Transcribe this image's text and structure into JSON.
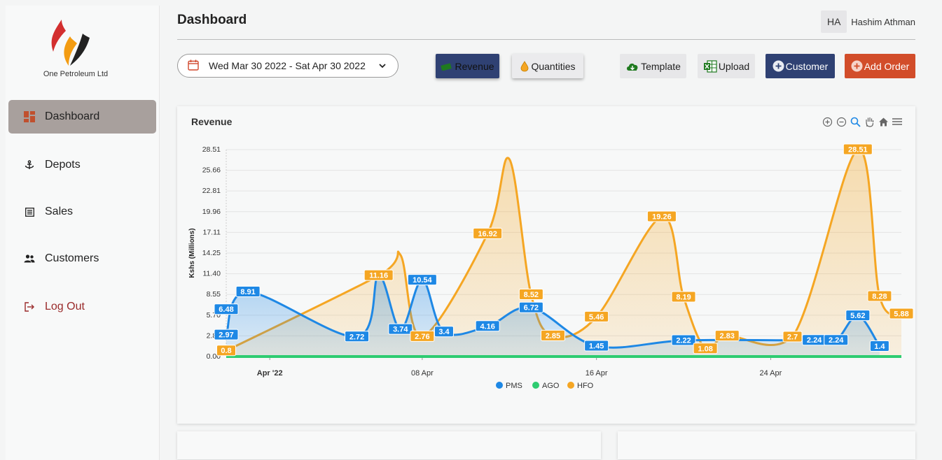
{
  "sidebar": {
    "logo_text": "One Petroleum Ltd",
    "items": [
      {
        "label": "Dashboard",
        "icon": "dashboard-icon"
      },
      {
        "label": "Depots",
        "icon": "anchor-icon"
      },
      {
        "label": "Sales",
        "icon": "list-icon"
      },
      {
        "label": "Customers",
        "icon": "people-icon"
      },
      {
        "label": "Log Out",
        "icon": "logout-icon"
      }
    ]
  },
  "header": {
    "title": "Dashboard",
    "user_initials": "HA",
    "user_name": "Hashim Athman"
  },
  "filters": {
    "date_range": "Wed Mar 30 2022 - Sat Apr 30 2022"
  },
  "toolbar": {
    "revenue_label": "Revenue",
    "quantities_label": "Quantities",
    "template_label": "Template",
    "upload_label": "Upload",
    "customer_label": "Customer",
    "add_order_label": "Add Order"
  },
  "colors": {
    "PMS": "#1e88e5",
    "AGO": "#2ecc71",
    "HFO": "#f5a623",
    "accent_navy": "#2f4173",
    "accent_orange": "#d24d2a"
  },
  "chart_data": {
    "type": "area",
    "title": "Revenue",
    "ylabel": "Kshs (Millions)",
    "ylim": [
      0,
      28.51
    ],
    "y_ticks": [
      "0.00",
      "2.85",
      "5.70",
      "8.55",
      "11.40",
      "14.25",
      "17.11",
      "19.96",
      "22.81",
      "25.66",
      "28.51"
    ],
    "x_range": [
      "2022-03-30",
      "2022-04-30"
    ],
    "x_ticks": [
      {
        "date": "2022-04-01",
        "label": "Apr '22"
      },
      {
        "date": "2022-04-08",
        "label": "08 Apr"
      },
      {
        "date": "2022-04-16",
        "label": "16 Apr"
      },
      {
        "date": "2022-04-24",
        "label": "24 Apr"
      }
    ],
    "legend": "bottom",
    "grid": true,
    "series": [
      {
        "name": "PMS",
        "points": [
          {
            "x": "2022-03-30",
            "y": 2.97,
            "label": "2.97"
          },
          {
            "x": "2022-03-31",
            "y": 8.91,
            "label": "8.91"
          },
          {
            "x": "2022-04-05",
            "y": 2.72,
            "label": "2.72"
          },
          {
            "x": "2022-04-06",
            "y": 11.16
          },
          {
            "x": "2022-04-07",
            "y": 3.74,
            "label": "3.74"
          },
          {
            "x": "2022-04-08",
            "y": 10.54,
            "label": "10.54"
          },
          {
            "x": "2022-04-09",
            "y": 3.4,
            "label": "3.4"
          },
          {
            "x": "2022-04-11",
            "y": 4.16,
            "label": "4.16"
          },
          {
            "x": "2022-04-13",
            "y": 6.72,
            "label": "6.72"
          },
          {
            "x": "2022-04-16",
            "y": 1.45,
            "label": "1.45"
          },
          {
            "x": "2022-04-20",
            "y": 2.22,
            "label": "2.22"
          },
          {
            "x": "2022-04-25",
            "y": 2.24
          },
          {
            "x": "2022-04-26",
            "y": 2.24,
            "label": "2.24"
          },
          {
            "x": "2022-04-27",
            "y": 2.24,
            "label": "2.24"
          },
          {
            "x": "2022-04-28",
            "y": 5.62,
            "label": "5.62"
          },
          {
            "x": "2022-04-29",
            "y": 1.4,
            "label": "1.4"
          }
        ]
      },
      {
        "name": "AGO",
        "points": [
          {
            "x": "2022-03-30",
            "y": 0
          },
          {
            "x": "2022-04-30",
            "y": 0
          }
        ]
      },
      {
        "name": "HFO",
        "points": [
          {
            "x": "2022-03-30",
            "y": 0.8,
            "label": "0.8"
          },
          {
            "x": "2022-04-06",
            "y": 11.16,
            "label": "11.16"
          },
          {
            "x": "2022-04-07",
            "y": 14.0
          },
          {
            "x": "2022-04-08",
            "y": 2.76,
            "label": "2.76"
          },
          {
            "x": "2022-04-11",
            "y": 16.92,
            "label": "16.92"
          },
          {
            "x": "2022-04-12",
            "y": 27.2
          },
          {
            "x": "2022-04-13",
            "y": 8.52,
            "label": "8.52"
          },
          {
            "x": "2022-04-14",
            "y": 2.85,
            "label": "2.85"
          },
          {
            "x": "2022-04-16",
            "y": 5.46,
            "label": "5.46"
          },
          {
            "x": "2022-04-19",
            "y": 19.26,
            "label": "19.26"
          },
          {
            "x": "2022-04-20",
            "y": 8.19,
            "label": "8.19"
          },
          {
            "x": "2022-04-21",
            "y": 1.08,
            "label": "1.08"
          },
          {
            "x": "2022-04-22",
            "y": 2.83,
            "label": "2.83"
          },
          {
            "x": "2022-04-25",
            "y": 2.7,
            "label": "2.7"
          },
          {
            "x": "2022-04-28",
            "y": 28.51,
            "label": "28.51"
          },
          {
            "x": "2022-04-29",
            "y": 8.28,
            "label": "8.28"
          },
          {
            "x": "2022-04-30",
            "y": 5.88,
            "label": "5.88"
          }
        ]
      }
    ],
    "extra_labels": [
      {
        "series": "PMS",
        "x": "2022-03-30",
        "y": 6.48,
        "label": "6.48"
      }
    ]
  }
}
